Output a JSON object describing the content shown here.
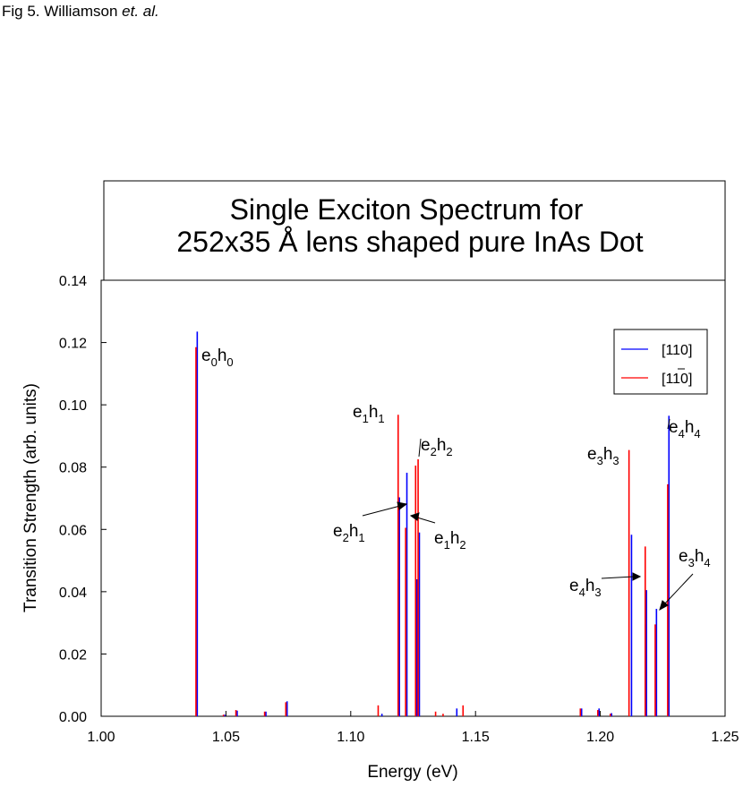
{
  "figure_caption": {
    "prefix": "Fig 5. Williamson ",
    "italic": "et. al."
  },
  "chart_data": {
    "type": "bar",
    "title_lines": [
      "Single Exciton Spectrum for",
      "252x35 Å lens shaped pure InAs Dot"
    ],
    "xlabel": "Energy (eV)",
    "ylabel": "Transition Strength (arb. units)",
    "xlim": [
      1.0,
      1.25
    ],
    "ylim": [
      0.0,
      0.14
    ],
    "xticks": [
      "1.00",
      "1.05",
      "1.10",
      "1.15",
      "1.20",
      "1.25"
    ],
    "yticks": [
      "0.00",
      "0.02",
      "0.04",
      "0.06",
      "0.08",
      "0.10",
      "0.12",
      "0.14"
    ],
    "grid": false,
    "legend_position": "top-right",
    "series": [
      {
        "name": "[110]",
        "color": "#0000ff",
        "x": [
          1.0385,
          1.0495,
          1.0545,
          1.066,
          1.0745,
          1.1125,
          1.1195,
          1.1225,
          1.1265,
          1.1275,
          1.1425,
          1.1925,
          1.1995,
          1.2045,
          1.2125,
          1.2185,
          1.2225,
          1.2275
        ],
        "values": [
          0.1235,
          0.0005,
          0.0018,
          0.0015,
          0.0048,
          0.0008,
          0.0703,
          0.0782,
          0.044,
          0.059,
          0.0025,
          0.0025,
          0.0025,
          0.001,
          0.0583,
          0.0405,
          0.0345,
          0.0965
        ]
      },
      {
        "name": "[1Ā0]",
        "color": "#ff0000",
        "x": [
          1.038,
          1.049,
          1.054,
          1.0655,
          1.074,
          1.111,
          1.119,
          1.122,
          1.126,
          1.127,
          1.134,
          1.137,
          1.145,
          1.192,
          1.199,
          1.204,
          1.2115,
          1.218,
          1.222,
          1.227
        ],
        "values": [
          0.1185,
          0.0005,
          0.002,
          0.0015,
          0.0045,
          0.0035,
          0.0968,
          0.0605,
          0.0805,
          0.0825,
          0.0015,
          0.0008,
          0.0035,
          0.0025,
          0.002,
          0.0008,
          0.0855,
          0.0545,
          0.0295,
          0.0745
        ]
      }
    ],
    "legend_labels": [
      "[110]",
      "[110]"
    ],
    "annotations": [
      {
        "main1": "e",
        "sub1": "0",
        "main2": "h",
        "sub2": "0"
      },
      {
        "main1": "e",
        "sub1": "1",
        "main2": "h",
        "sub2": "1"
      },
      {
        "main1": "e",
        "sub1": "2",
        "main2": "h",
        "sub2": "2"
      },
      {
        "main1": "e",
        "sub1": "2",
        "main2": "h",
        "sub2": "1"
      },
      {
        "main1": "e",
        "sub1": "1",
        "main2": "h",
        "sub2": "2"
      },
      {
        "main1": "e",
        "sub1": "3",
        "main2": "h",
        "sub2": "3"
      },
      {
        "main1": "e",
        "sub1": "4",
        "main2": "h",
        "sub2": "4"
      },
      {
        "main1": "e",
        "sub1": "4",
        "main2": "h",
        "sub2": "3"
      },
      {
        "main1": "e",
        "sub1": "3",
        "main2": "h",
        "sub2": "4"
      }
    ]
  }
}
